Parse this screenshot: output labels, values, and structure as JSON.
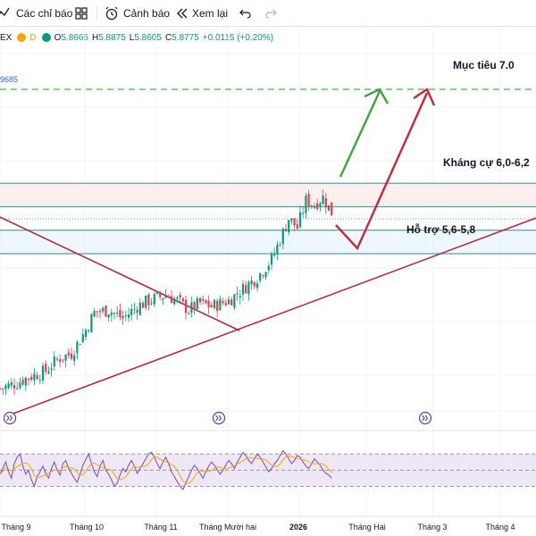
{
  "toolbar": {
    "indicators_label": "Các chỉ báo",
    "alerts_label": "Cảnh báo",
    "replay_label": "Xem lại",
    "icons": [
      "indicators-icon",
      "layout-grid-icon",
      "alert-clock-icon",
      "replay-icon",
      "undo-icon",
      "redo-icon"
    ]
  },
  "legend": {
    "symbol_fragment": "EX",
    "badge": "D",
    "open_label": "O",
    "open_value": "5.8665",
    "high_label": "H",
    "high_value": "5.8875",
    "low_label": "L",
    "low_value": "5.8605",
    "close_label": "C",
    "close_value": "5.8775",
    "change_value": "+0.0115 (+0.20%)",
    "colors": {
      "up": "#089981",
      "down": "#f23645"
    }
  },
  "price_label": "9685",
  "annotations": {
    "target": "Mục tiêu 7.0",
    "resistance": "Kháng cự 6,0-6,2",
    "support": "Hỗ trợ 5,6-5,8"
  },
  "colors": {
    "candle_up": "#089981",
    "candle_down": "#f23645",
    "trendline": "#b22c3d",
    "zone_line": "#2e8b9a",
    "target_line": "#4caf50",
    "green_arrow": "#43a047",
    "red_arrow": "#c62838",
    "rsi_line": "#7e57c2",
    "rsi_band": "#ede7f6"
  },
  "chart_data": {
    "type": "candlestick",
    "price_range": [
      4.2,
      7.25
    ],
    "x_axis_labels": [
      "Tháng 9",
      "Tháng 10",
      "Tháng 11",
      "Tháng Mười hai",
      "2026",
      "Tháng Hai",
      "Tháng 3",
      "Tháng 4"
    ],
    "bold_x_labels": [
      "2026"
    ],
    "levels": {
      "target": 7.0,
      "resistance": [
        6.0,
        6.2
      ],
      "support": [
        5.6,
        5.8
      ]
    },
    "close_path": [
      [
        0,
        4.45
      ],
      [
        6,
        4.5
      ],
      [
        10,
        4.55
      ],
      [
        16,
        4.6
      ],
      [
        20,
        4.7
      ],
      [
        25,
        4.75
      ],
      [
        30,
        4.95
      ],
      [
        33,
        5.1
      ],
      [
        38,
        5.12
      ],
      [
        43,
        5.05
      ],
      [
        48,
        5.15
      ],
      [
        52,
        5.2
      ],
      [
        58,
        5.25
      ],
      [
        62,
        5.2
      ],
      [
        66,
        5.12
      ],
      [
        70,
        5.18
      ],
      [
        74,
        5.15
      ],
      [
        80,
        5.2
      ],
      [
        85,
        5.3
      ],
      [
        90,
        5.4
      ],
      [
        95,
        5.55
      ],
      [
        98,
        5.72
      ],
      [
        101,
        5.9
      ],
      [
        104,
        5.82
      ],
      [
        107,
        6.05
      ],
      [
        110,
        6.02
      ],
      [
        113,
        6.08
      ],
      [
        116,
        5.95
      ]
    ],
    "rsi": {
      "levels": [
        70,
        50,
        30
      ],
      "range": [
        15,
        90
      ],
      "values": [
        45,
        52,
        60,
        48,
        40,
        58,
        66,
        70,
        55,
        45,
        50,
        38,
        30,
        42,
        48,
        55,
        46,
        40,
        52,
        60,
        50,
        44,
        58,
        62,
        52,
        46,
        40,
        35,
        45,
        56,
        63,
        70,
        58,
        48,
        42,
        55,
        62,
        50,
        45,
        38,
        30,
        34,
        44,
        52,
        48,
        56,
        62,
        55,
        46,
        52,
        58,
        64,
        70,
        72,
        66,
        58,
        52,
        60,
        66,
        58,
        48,
        42,
        36,
        30,
        26,
        34,
        42,
        50,
        56,
        52,
        46,
        40,
        48,
        55,
        60,
        56,
        50,
        45,
        50,
        56,
        62,
        58,
        52,
        60,
        66,
        72,
        68,
        62,
        58,
        64,
        70,
        66,
        60,
        54,
        48,
        52,
        58,
        62,
        68,
        74,
        70,
        64,
        58,
        62,
        68,
        66,
        60,
        55,
        52,
        58,
        64,
        60,
        56,
        50,
        46,
        44,
        40
      ]
    }
  }
}
